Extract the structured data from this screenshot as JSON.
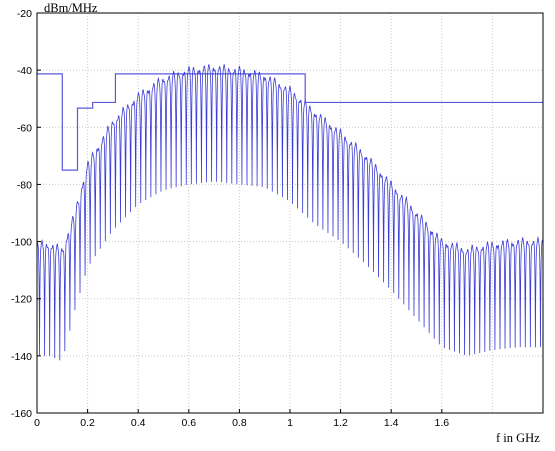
{
  "chart_data": {
    "type": "line",
    "ylabel": "dBm/MHz",
    "xlabel": "f in GHz",
    "xlim": [
      0,
      2.0
    ],
    "ylim": [
      -160,
      -20
    ],
    "x_ticks": [
      0,
      0.2,
      0.4,
      0.6,
      0.8,
      1,
      1.2,
      1.4,
      1.6
    ],
    "x_tick_labels": [
      "0",
      "0.2",
      "0.4",
      "0.6",
      "0.8",
      "1",
      "1.2",
      "1.4",
      "1.6"
    ],
    "y_ticks": [
      -160,
      -140,
      -120,
      -100,
      -80,
      -60,
      -40,
      -20
    ],
    "y_tick_labels": [
      "-160",
      "-140",
      "-120",
      "-100",
      "-80",
      "-60",
      "-40",
      "-20"
    ],
    "grid": true,
    "colors": {
      "series": "#3b3bd6",
      "mask": "#5a5ad8",
      "grid": "#c9c9c9",
      "axis": "#000000"
    },
    "series": [
      {
        "role": "mask",
        "step_x": [
          0,
          0.1,
          0.1,
          0.16,
          0.16,
          0.22,
          0.22,
          0.31,
          0.31,
          1.06,
          1.06,
          2.0
        ],
        "step_y": [
          -41.3,
          -41.3,
          -75,
          -75,
          -53.3,
          -53.3,
          -51.3,
          -51.3,
          -41.3,
          -41.3,
          -51.3,
          -51.3
        ]
      },
      {
        "role": "spectrum",
        "envelope_x": [
          0,
          0.05,
          0.1,
          0.15,
          0.2,
          0.3,
          0.4,
          0.5,
          0.6,
          0.7,
          0.8,
          0.9,
          1.0,
          1.1,
          1.2,
          1.3,
          1.4,
          1.5,
          1.6,
          1.7,
          1.8,
          1.9,
          2.0
        ],
        "envelope_peak_y": [
          -101,
          -101,
          -103,
          -90,
          -73,
          -58,
          -49,
          -43,
          -40,
          -39,
          -40,
          -42,
          -47,
          -55,
          -62,
          -70,
          -80,
          -90,
          -100,
          -103,
          -101,
          -100,
          -100
        ],
        "notch_depth_db": [
          35,
          35,
          35,
          30,
          32,
          34,
          34,
          35,
          36,
          36,
          36,
          35,
          35,
          35,
          34,
          34,
          33,
          33,
          33,
          33,
          33,
          33,
          33
        ]
      }
    ]
  }
}
